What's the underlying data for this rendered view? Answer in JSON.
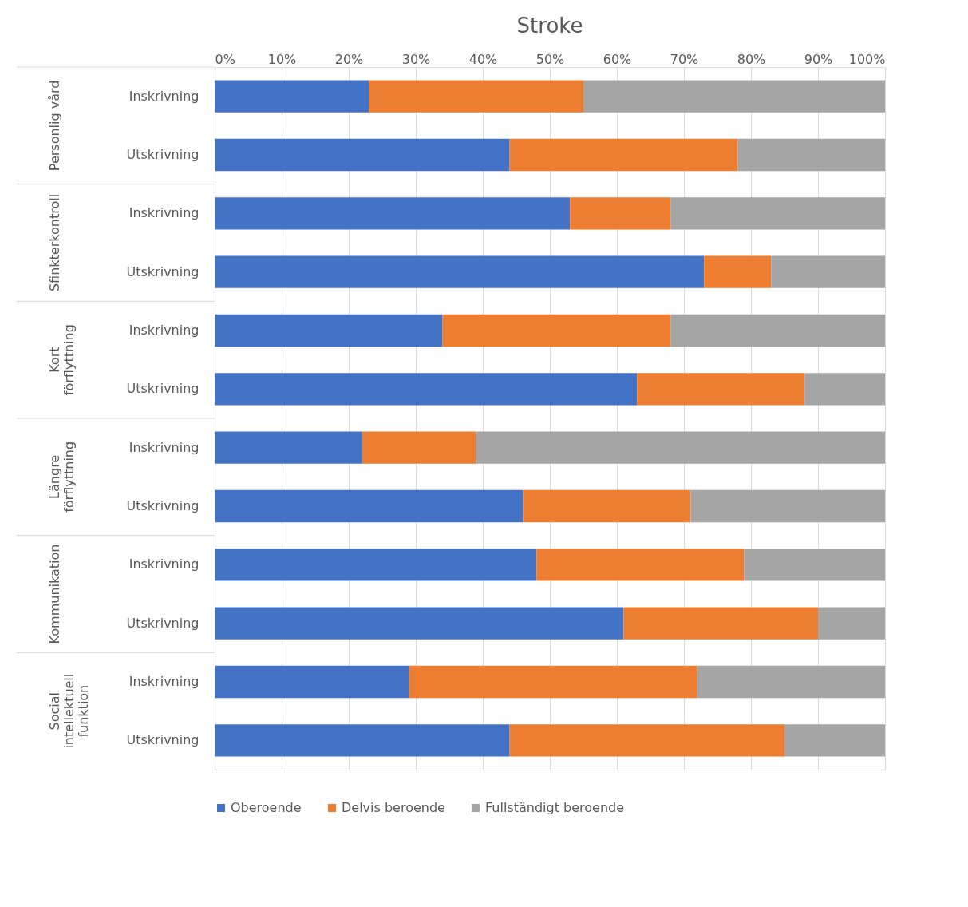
{
  "chart_data": {
    "type": "bar",
    "title": "Stroke",
    "orientation": "horizontal",
    "stacked": true,
    "categories": [
      "Inskrivning",
      "Utskrivning",
      "Inskrivning",
      "Utskrivning",
      "Inskrivning",
      "Utskrivning",
      "Inskrivning",
      "Utskrivning",
      "Inskrivning",
      "Utskrivning",
      "Inskrivning",
      "Utskrivning"
    ],
    "series": [
      {
        "name": "Oberoende",
        "color": "#4472c4",
        "values": [
          23,
          44,
          53,
          73,
          34,
          63,
          22,
          46,
          48,
          61,
          29,
          44
        ]
      },
      {
        "name": "Delvis beroende",
        "color": "#ed7d31",
        "values": [
          32,
          34,
          15,
          10,
          34,
          25,
          17,
          25,
          31,
          29,
          43,
          41
        ]
      },
      {
        "name": "Fullständigt beroende",
        "color": "#a5a5a5",
        "values": [
          45,
          22,
          32,
          17,
          32,
          12,
          61,
          29,
          21,
          10,
          28,
          15
        ]
      }
    ],
    "xlim": [
      0,
      100
    ],
    "xticks": [
      {
        "value": 0,
        "label": "0%"
      },
      {
        "value": 10,
        "label": "10%"
      },
      {
        "value": 20,
        "label": "20%"
      },
      {
        "value": 30,
        "label": "30%"
      },
      {
        "value": 40,
        "label": "40%"
      },
      {
        "value": 50,
        "label": "50%"
      },
      {
        "value": 60,
        "label": "60%"
      },
      {
        "value": 70,
        "label": "70%"
      },
      {
        "value": 80,
        "label": "80%"
      },
      {
        "value": 90,
        "label": "90%"
      },
      {
        "value": 100,
        "label": "100%"
      }
    ],
    "annotations": [
      "Personlig vård",
      "Sfinkterkontroll",
      "Kort\nförflyttning",
      "Längre\nförflyttning",
      "Kommunikation",
      "Social\nintellektuell\nfunktion"
    ],
    "grid": "x",
    "legend": "bottom"
  }
}
